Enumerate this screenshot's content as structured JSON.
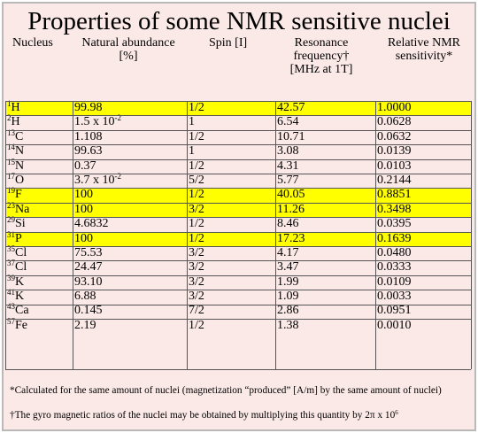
{
  "title": "Properties of some NMR sensitive nuclei",
  "headers": {
    "nucleus": "Nucleus",
    "abundance_line1": "Natural abundance",
    "abundance_line2": "[%]",
    "spin": "Spin [I]",
    "freq_line1": "Resonance",
    "freq_line2": "frequency†",
    "freq_line3": "[MHz at 1T]",
    "sens_line1": "Relative NMR",
    "sens_line2": "sensitivity*"
  },
  "rows": [
    {
      "mass": "1",
      "symbol": "H",
      "abundance": "99.98",
      "abundance_exp": "",
      "spin": "1/2",
      "freq": "42.57",
      "sens": "1.0000",
      "highlight": true
    },
    {
      "mass": "2",
      "symbol": "H",
      "abundance": "1.5 x 10",
      "abundance_exp": "-2",
      "spin": "1",
      "freq": "6.54",
      "sens": "0.0628",
      "highlight": false
    },
    {
      "mass": "13",
      "symbol": "C",
      "abundance": "1.108",
      "abundance_exp": "",
      "spin": "1/2",
      "freq": "10.71",
      "sens": "0.0632",
      "highlight": false
    },
    {
      "mass": "14",
      "symbol": "N",
      "abundance": "99.63",
      "abundance_exp": "",
      "spin": "1",
      "freq": "3.08",
      "sens": "0.0139",
      "highlight": false
    },
    {
      "mass": "15",
      "symbol": "N",
      "abundance": "0.37",
      "abundance_exp": "",
      "spin": "1/2",
      "freq": "4.31",
      "sens": "0.0103",
      "highlight": false
    },
    {
      "mass": "17",
      "symbol": "O",
      "abundance": "3.7 x 10",
      "abundance_exp": "-2",
      "spin": "5/2",
      "freq": "5.77",
      "sens": "0.2144",
      "highlight": false
    },
    {
      "mass": "19",
      "symbol": "F",
      "abundance": "100",
      "abundance_exp": "",
      "spin": "1/2",
      "freq": "40.05",
      "sens": "0.8851",
      "highlight": true
    },
    {
      "mass": "23",
      "symbol": "Na",
      "abundance": "100",
      "abundance_exp": "",
      "spin": "3/2",
      "freq": "11.26",
      "sens": "0.3498",
      "highlight": true
    },
    {
      "mass": "29",
      "symbol": "Si",
      "abundance": "4.6832",
      "abundance_exp": "",
      "spin": "1/2",
      "freq": "8.46",
      "sens": "0.0395",
      "highlight": false
    },
    {
      "mass": "31",
      "symbol": "P",
      "abundance": "100",
      "abundance_exp": "",
      "spin": "1/2",
      "freq": "17.23",
      "sens": "0.1639",
      "highlight": true
    },
    {
      "mass": "35",
      "symbol": "Cl",
      "abundance": "75.53",
      "abundance_exp": "",
      "spin": "3/2",
      "freq": "4.17",
      "sens": "0.0480",
      "highlight": false
    },
    {
      "mass": "37",
      "symbol": "Cl",
      "abundance": "24.47",
      "abundance_exp": "",
      "spin": "3/2",
      "freq": "3.47",
      "sens": "0.0333",
      "highlight": false
    },
    {
      "mass": "39",
      "symbol": "K",
      "abundance": "93.10",
      "abundance_exp": "",
      "spin": "3/2",
      "freq": "1.99",
      "sens": "0.0109",
      "highlight": false
    },
    {
      "mass": "41",
      "symbol": "K",
      "abundance": "6.88",
      "abundance_exp": "",
      "spin": "3/2",
      "freq": "1.09",
      "sens": "0.0033",
      "highlight": false
    },
    {
      "mass": "43",
      "symbol": "Ca",
      "abundance": "0.145",
      "abundance_exp": "",
      "spin": "7/2",
      "freq": "2.86",
      "sens": "0.0951",
      "highlight": false
    },
    {
      "mass": "57",
      "symbol": "Fe",
      "abundance": "2.19",
      "abundance_exp": "",
      "spin": "1/2",
      "freq": "1.38",
      "sens": "0.0010",
      "highlight": false
    }
  ],
  "footnotes": {
    "sensitivity": "*Calculated for the same amount of nuclei (magnetization “produced” [A/m] by the same amount of nuclei)",
    "gyro_text": "†The gyro magnetic ratios of the nuclei may be obtained by multiplying this quantity by 2π x 10",
    "gyro_exp": "6"
  },
  "colors": {
    "background": "#fbe9e7",
    "highlight": "#ffff00",
    "border": "#b9b9b9"
  }
}
